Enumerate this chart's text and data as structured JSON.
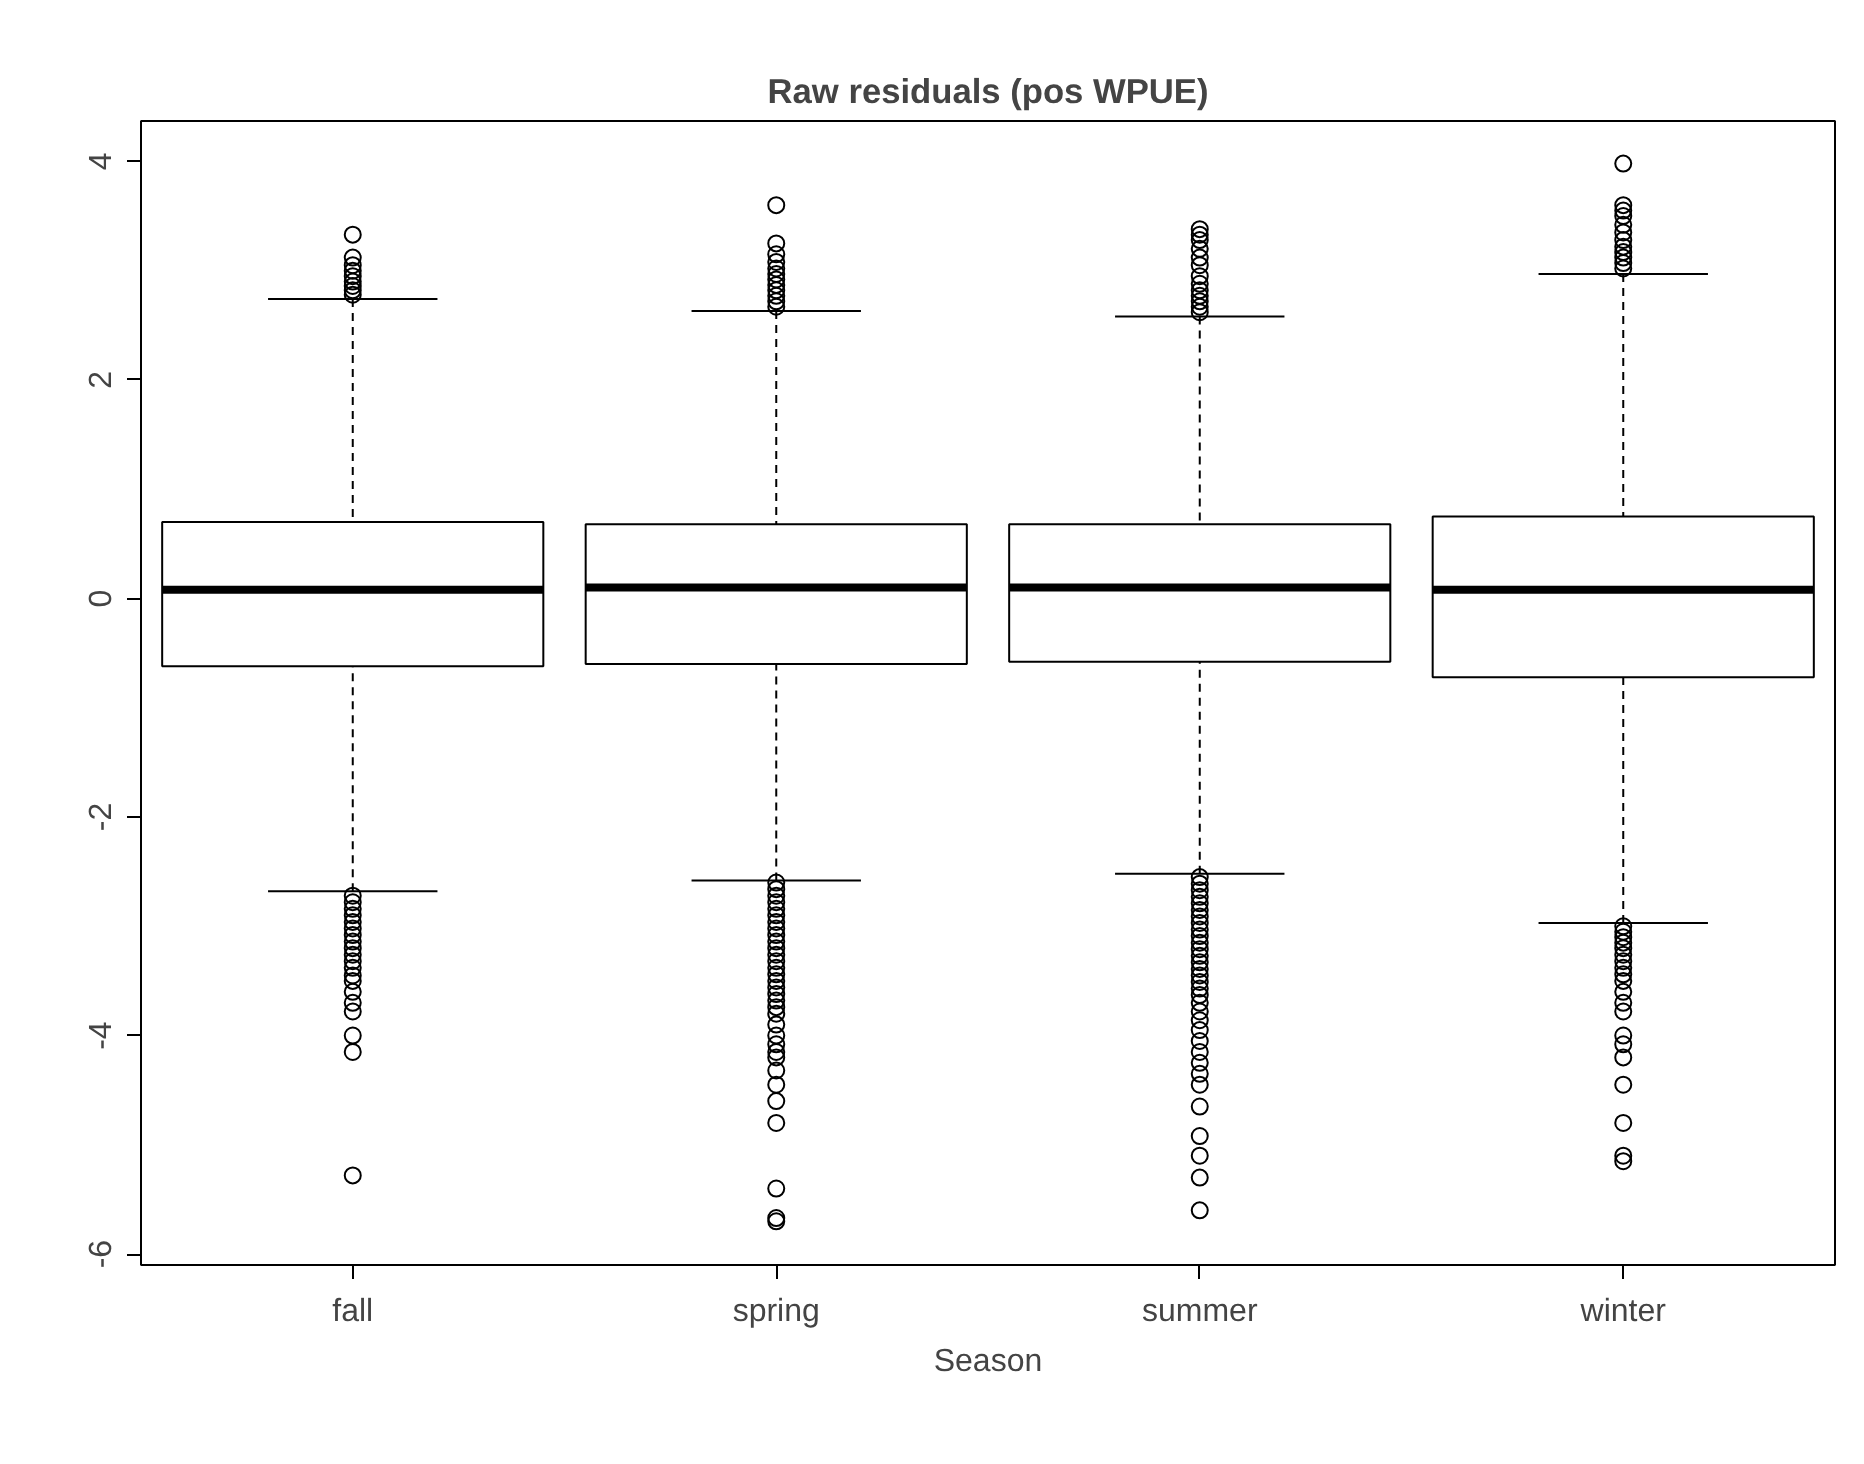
{
  "chart_data": {
    "type": "box",
    "title": "Raw residuals (pos WPUE)",
    "xlabel": "Season",
    "categories": [
      "fall",
      "spring",
      "summer",
      "winter"
    ],
    "ylim": [
      -6.1,
      4.37
    ],
    "yticks": [
      -6,
      -4,
      -2,
      0,
      2,
      4
    ],
    "grid": false,
    "marker": "circle",
    "boxes": [
      {
        "low": -2.68,
        "q1": -0.62,
        "median": 0.08,
        "q3": 0.7,
        "high": 2.74,
        "outliers": [
          2.78,
          2.82,
          2.86,
          2.9,
          2.95,
          3.0,
          3.05,
          3.12,
          3.33,
          -2.72,
          -2.78,
          -2.84,
          -2.9,
          -2.96,
          -3.02,
          -3.08,
          -3.14,
          -3.2,
          -3.26,
          -3.32,
          -3.38,
          -3.45,
          -3.5,
          -3.6,
          -3.7,
          -3.78,
          -4.0,
          -4.15,
          -5.28
        ]
      },
      {
        "low": -2.58,
        "q1": -0.6,
        "median": 0.1,
        "q3": 0.68,
        "high": 2.63,
        "outliers": [
          2.67,
          2.72,
          2.77,
          2.82,
          2.87,
          2.92,
          2.97,
          3.02,
          3.08,
          3.15,
          3.25,
          3.6,
          -2.6,
          -2.66,
          -2.72,
          -2.78,
          -2.84,
          -2.9,
          -2.96,
          -3.02,
          -3.08,
          -3.14,
          -3.2,
          -3.26,
          -3.32,
          -3.38,
          -3.44,
          -3.5,
          -3.56,
          -3.62,
          -3.68,
          -3.74,
          -3.8,
          -3.9,
          -4.0,
          -4.08,
          -4.15,
          -4.2,
          -4.32,
          -4.45,
          -4.6,
          -4.8,
          -5.4,
          -5.67,
          -5.7
        ]
      },
      {
        "low": -2.52,
        "q1": -0.58,
        "median": 0.1,
        "q3": 0.68,
        "high": 2.58,
        "outliers": [
          2.62,
          2.67,
          2.72,
          2.77,
          2.82,
          2.88,
          2.95,
          3.05,
          3.12,
          3.2,
          3.28,
          3.33,
          3.38,
          -2.55,
          -2.61,
          -2.67,
          -2.73,
          -2.79,
          -2.85,
          -2.91,
          -2.97,
          -3.03,
          -3.09,
          -3.15,
          -3.21,
          -3.27,
          -3.33,
          -3.39,
          -3.45,
          -3.51,
          -3.57,
          -3.63,
          -3.7,
          -3.78,
          -3.86,
          -3.95,
          -4.05,
          -4.15,
          -4.25,
          -4.35,
          -4.45,
          -4.65,
          -4.92,
          -5.1,
          -5.3,
          -5.6
        ]
      },
      {
        "low": -2.97,
        "q1": -0.72,
        "median": 0.08,
        "q3": 0.75,
        "high": 2.97,
        "outliers": [
          3.02,
          3.07,
          3.12,
          3.17,
          3.22,
          3.28,
          3.35,
          3.42,
          3.5,
          3.55,
          3.6,
          3.98,
          -3.0,
          -3.05,
          -3.1,
          -3.15,
          -3.2,
          -3.26,
          -3.32,
          -3.38,
          -3.44,
          -3.5,
          -3.6,
          -3.7,
          -3.78,
          -4.0,
          -4.08,
          -4.2,
          -4.45,
          -4.8,
          -5.1,
          -5.15
        ]
      }
    ]
  }
}
